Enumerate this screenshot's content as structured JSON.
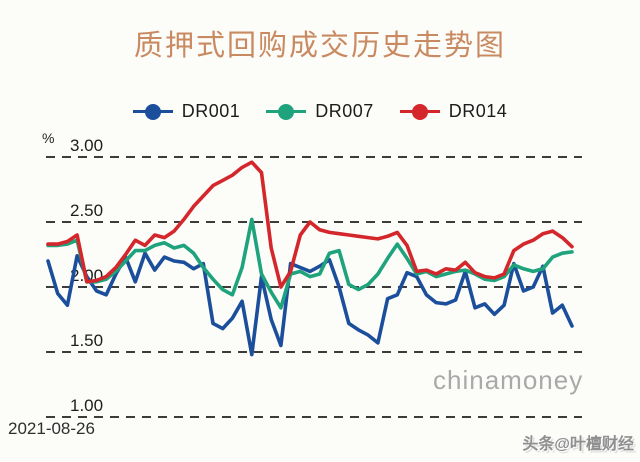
{
  "header": {
    "title": "质押式回购成交历史走势图",
    "title_color": "#c98a62"
  },
  "footer": {
    "date": "2021-08-26"
  },
  "watermarks": {
    "center": "chinamoney",
    "bottom_right": "头条@叶檀财经"
  },
  "chart_data": {
    "type": "line",
    "title": "质押式回购成交历史走势图",
    "xlabel": "",
    "ylabel": "%",
    "ylim": [
      1.0,
      3.0
    ],
    "yticks": [
      3.0,
      2.5,
      2.0,
      1.5,
      1.0
    ],
    "ytick_labels": [
      "3.00",
      "2.50",
      "2.00",
      "1.50",
      "1.00"
    ],
    "grid": "horizontal dashed",
    "gridline_color": "#3c3c3c",
    "legend_position": "top center",
    "x_axis": {
      "type": "time",
      "tick_labels_visible": false,
      "start_date_label": "2021-08-26"
    },
    "series": [
      {
        "name": "DR001",
        "color": "#1b4e9b",
        "values": [
          2.2,
          1.95,
          1.86,
          2.24,
          2.08,
          1.97,
          1.94,
          2.1,
          2.23,
          2.04,
          2.26,
          2.13,
          2.23,
          2.2,
          2.19,
          2.14,
          2.18,
          1.72,
          1.68,
          1.76,
          1.89,
          1.48,
          2.08,
          1.75,
          1.55,
          2.18,
          2.15,
          2.12,
          2.16,
          2.21,
          2.0,
          1.72,
          1.67,
          1.63,
          1.57,
          1.91,
          1.94,
          2.11,
          2.08,
          1.94,
          1.88,
          1.87,
          1.9,
          2.12,
          1.84,
          1.87,
          1.79,
          1.86,
          2.18,
          1.97,
          2.0,
          2.16,
          1.8,
          1.86,
          1.7
        ]
      },
      {
        "name": "DR007",
        "color": "#1ea37c",
        "values": [
          2.32,
          2.32,
          2.33,
          2.36,
          2.04,
          2.04,
          2.06,
          2.12,
          2.2,
          2.28,
          2.28,
          2.32,
          2.34,
          2.3,
          2.32,
          2.26,
          2.15,
          2.06,
          1.98,
          1.94,
          2.15,
          2.52,
          2.1,
          1.96,
          1.84,
          2.1,
          2.12,
          2.08,
          2.1,
          2.26,
          2.28,
          2.02,
          1.98,
          2.02,
          2.1,
          2.22,
          2.33,
          2.22,
          2.1,
          2.12,
          2.08,
          2.1,
          2.12,
          2.13,
          2.1,
          2.06,
          2.05,
          2.08,
          2.17,
          2.14,
          2.12,
          2.14,
          2.23,
          2.26,
          2.27
        ]
      },
      {
        "name": "DR014",
        "color": "#d4272c",
        "values": [
          2.33,
          2.33,
          2.35,
          2.4,
          2.04,
          2.05,
          2.08,
          2.15,
          2.25,
          2.36,
          2.32,
          2.4,
          2.38,
          2.43,
          2.52,
          2.62,
          2.7,
          2.78,
          2.82,
          2.86,
          2.92,
          2.96,
          2.88,
          2.3,
          2.0,
          2.12,
          2.4,
          2.5,
          2.44,
          2.42,
          2.41,
          2.4,
          2.39,
          2.38,
          2.37,
          2.39,
          2.42,
          2.32,
          2.12,
          2.13,
          2.1,
          2.14,
          2.13,
          2.19,
          2.11,
          2.08,
          2.07,
          2.1,
          2.28,
          2.33,
          2.36,
          2.41,
          2.43,
          2.38,
          2.31
        ]
      }
    ]
  }
}
